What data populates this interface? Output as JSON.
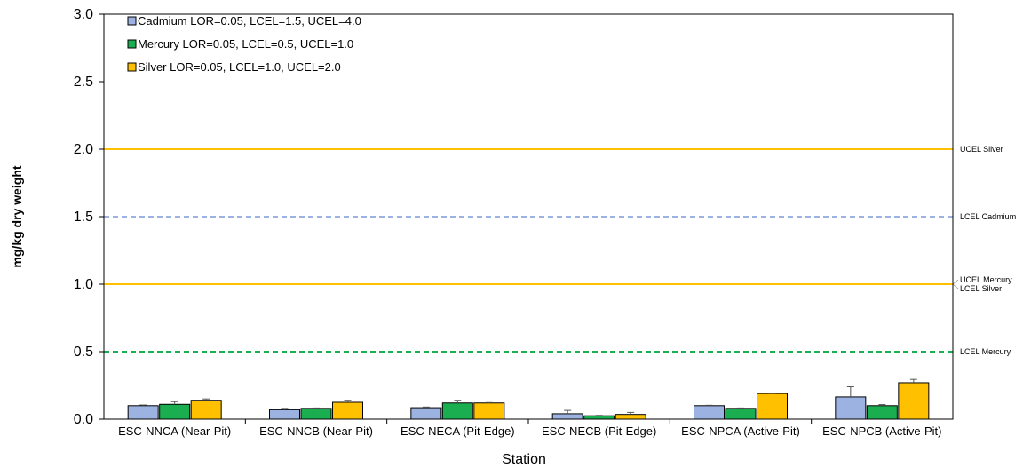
{
  "chart_data": {
    "type": "bar",
    "title": "",
    "xlabel": "Station",
    "ylabel": "mg/kg dry weight",
    "ylim": [
      0,
      3.0
    ],
    "yticks": [
      "0.0",
      "0.5",
      "1.0",
      "1.5",
      "2.0",
      "2.5",
      "3.0"
    ],
    "categories": [
      "ESC-NNCA (Near-Pit)",
      "ESC-NNCB (Near-Pit)",
      "ESC-NECA (Pit-Edge)",
      "ESC-NECB (Pit-Edge)",
      "ESC-NPCA (Active-Pit)",
      "ESC-NPCB (Active-Pit)"
    ],
    "series": [
      {
        "name": "Cadmium LOR=0.05, LCEL=1.5, UCEL=4.0",
        "color": "#9cb2e0",
        "values": [
          0.1,
          0.07,
          0.085,
          0.04,
          0.1,
          0.165
        ],
        "errors": [
          0.005,
          0.01,
          0.005,
          0.025,
          0.003,
          0.075
        ]
      },
      {
        "name": "Mercury LOR=0.05, LCEL=0.5, UCEL=1.0",
        "color": "#1aae50",
        "values": [
          0.11,
          0.08,
          0.12,
          0.025,
          0.08,
          0.1
        ],
        "errors": [
          0.02,
          0.003,
          0.02,
          0.003,
          0.003,
          0.008
        ]
      },
      {
        "name": "Silver LOR=0.05, LCEL=1.0, UCEL=2.0",
        "color": "#ffc000",
        "values": [
          0.14,
          0.125,
          0.12,
          0.035,
          0.19,
          0.27
        ],
        "errors": [
          0.01,
          0.015,
          0.003,
          0.015,
          0.003,
          0.025
        ]
      }
    ],
    "reference_lines": [
      {
        "name": "UCEL Silver",
        "value": 2.0,
        "color": "#ffc000",
        "style": "solid"
      },
      {
        "name": "LCEL Cadmium",
        "value": 1.5,
        "color": "#9cb2e0",
        "style": "dashed"
      },
      {
        "name": "UCEL Mercury",
        "value": 1.0,
        "color": "#1aae50",
        "style": "dashed"
      },
      {
        "name": "LCEL Silver",
        "value": 1.0,
        "color": "#ffc000",
        "style": "solid"
      },
      {
        "name": "LCEL Mercury",
        "value": 0.5,
        "color": "#1aae50",
        "style": "dashed"
      }
    ],
    "legend_position": "top-left",
    "grid": false
  }
}
